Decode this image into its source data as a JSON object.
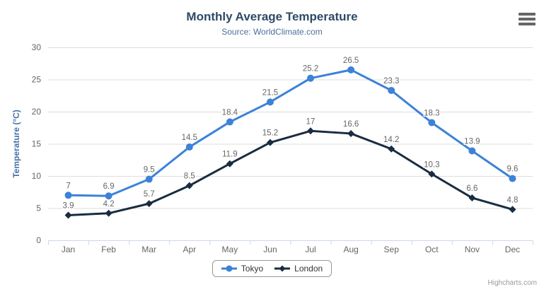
{
  "chart": {
    "title": "Monthly Average Temperature",
    "subtitle": "Source: WorldClimate.com",
    "credits": "Highcharts.com",
    "export_menu_icon": "hamburger-icon",
    "colors": {
      "title": "#2e4a66",
      "subtitle": "#4a6f9e",
      "axis_label": "#666666",
      "data_label": "#666666",
      "y_axis_title": "#4572a7",
      "gridline": "#dddddd",
      "x_axis_line": "#ccd6eb",
      "legend_border": "#999999",
      "credits": "#999999",
      "export_icon": "#666666"
    }
  },
  "chart_data": {
    "type": "line",
    "title": "Monthly Average Temperature",
    "subtitle": "Source: WorldClimate.com",
    "categories": [
      "Jan",
      "Feb",
      "Mar",
      "Apr",
      "May",
      "Jun",
      "Jul",
      "Aug",
      "Sep",
      "Oct",
      "Nov",
      "Dec"
    ],
    "series": [
      {
        "name": "Tokyo",
        "color": "#3c82d8",
        "marker": "circle",
        "values": [
          7,
          6.9,
          9.5,
          14.5,
          18.4,
          21.5,
          25.2,
          26.5,
          23.3,
          18.3,
          13.9,
          9.6
        ]
      },
      {
        "name": "London",
        "color": "#192c41",
        "marker": "diamond",
        "values": [
          3.9,
          4.2,
          5.7,
          8.5,
          11.9,
          15.2,
          17,
          16.6,
          14.2,
          10.3,
          6.6,
          4.8
        ]
      }
    ],
    "xlabel": "",
    "ylabel": "Temperature (°C)",
    "ylim": [
      0,
      30
    ],
    "ytick_step": 5,
    "yticks": [
      0,
      5,
      10,
      15,
      20,
      25,
      30
    ],
    "grid": true,
    "data_labels": true,
    "legend_position": "bottom-center"
  }
}
